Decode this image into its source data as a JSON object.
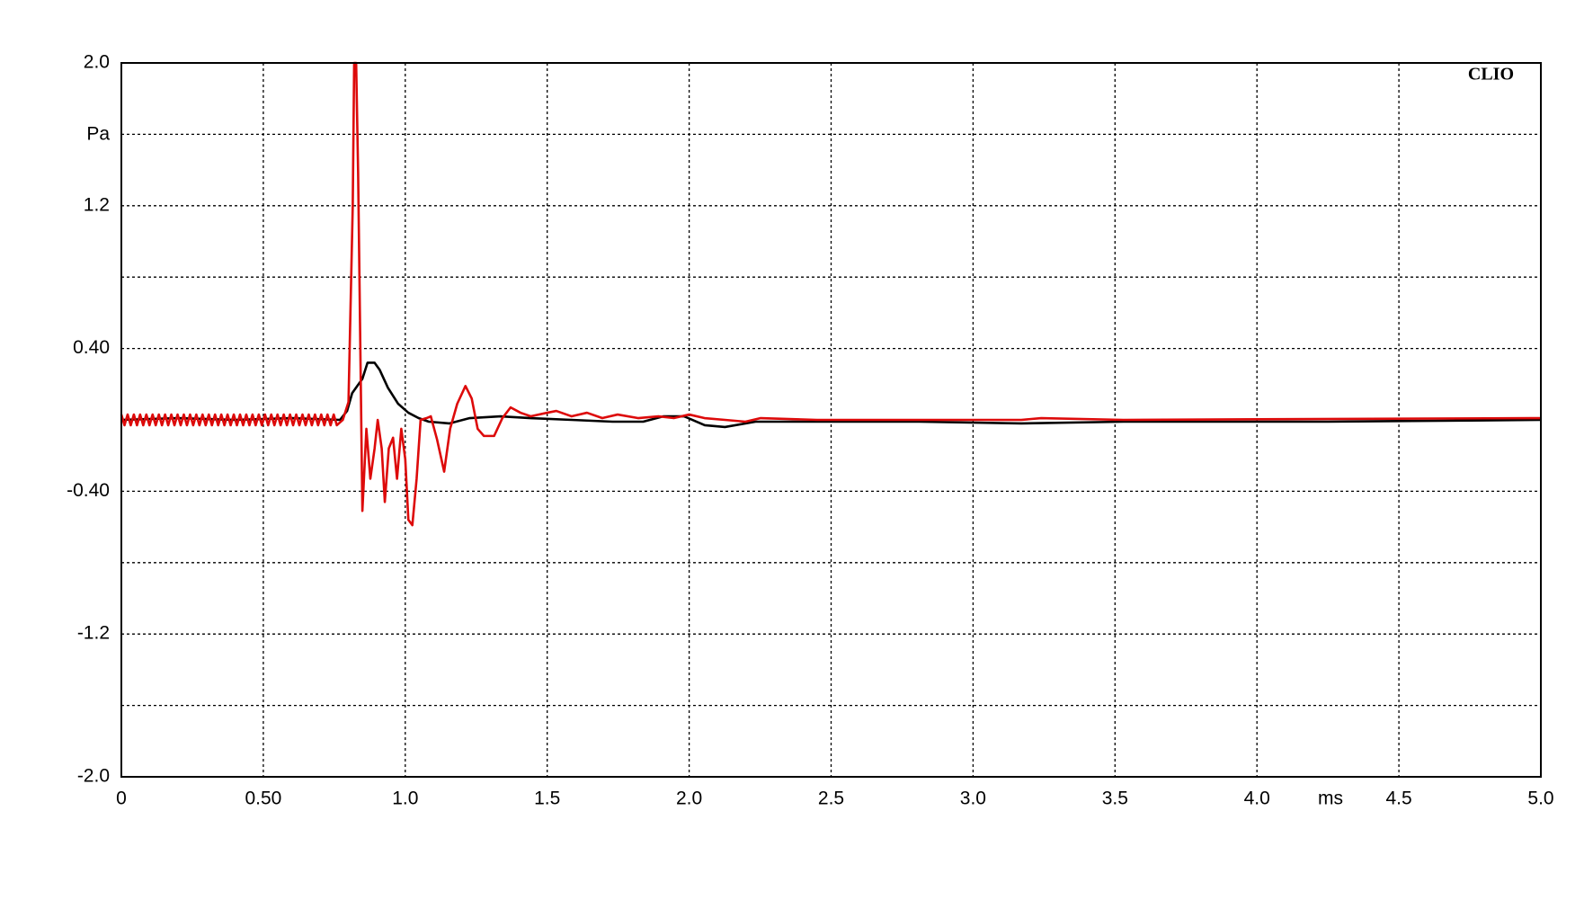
{
  "chart_data": {
    "type": "line",
    "annotation": "CLIO",
    "y_label": "Pa",
    "x_label": "ms",
    "xlim": [
      0,
      5
    ],
    "ylim": [
      -2,
      2
    ],
    "xticks": [
      0,
      {
        "value": 0.5,
        "label": "0.50"
      },
      {
        "value": 1,
        "label": "1.0"
      },
      1.5,
      {
        "value": 2,
        "label": "2.0"
      },
      2.5,
      {
        "value": 3,
        "label": "3.0"
      },
      3.5,
      {
        "value": 4,
        "label": "4.0"
      },
      4.5,
      {
        "value": 5,
        "label": "5.0"
      }
    ],
    "yticks": [
      {
        "value": -2,
        "label": "-2.0"
      },
      -1.2,
      {
        "value": -0.4,
        "label": "-0.40"
      },
      {
        "value": 0.4,
        "label": "0.40"
      },
      1.2,
      {
        "value": 2,
        "label": "2.0"
      }
    ],
    "ygrid_minor": [
      -1.6,
      -0.8,
      0.8,
      1.6
    ],
    "grid": true,
    "series": [
      {
        "color": "#000000",
        "x": [
          0,
          0.2,
          0.4,
          0.6,
          0.77,
          0.795,
          0.813,
          0.831,
          0.849,
          0.867,
          0.892,
          0.91,
          0.939,
          0.975,
          1.011,
          1.047,
          1.083,
          1.155,
          1.227,
          1.335,
          1.442,
          1.586,
          1.73,
          1.838,
          1.91,
          1.982,
          2.055,
          2.126,
          2.234,
          2.45,
          2.81,
          3.17,
          3.53,
          4.25,
          5
        ],
        "values": [
          0,
          0.01,
          0,
          0.01,
          0,
          0.05,
          0.15,
          0.19,
          0.23,
          0.32,
          0.32,
          0.28,
          0.18,
          0.09,
          0.04,
          0.01,
          -0.01,
          -0.02,
          0.01,
          0.02,
          0.01,
          0,
          -0.01,
          -0.01,
          0.02,
          0.02,
          -0.03,
          -0.04,
          -0.01,
          -0.01,
          -0.01,
          -0.02,
          -0.01,
          -0.01,
          0
        ]
      },
      {
        "color": "#dd0a0a",
        "x": [
          0,
          0.011,
          0.022,
          0.033,
          0.044,
          0.055,
          0.066,
          0.077,
          0.088,
          0.099,
          0.11,
          0.121,
          0.132,
          0.143,
          0.154,
          0.165,
          0.176,
          0.187,
          0.198,
          0.209,
          0.22,
          0.231,
          0.242,
          0.253,
          0.264,
          0.275,
          0.286,
          0.297,
          0.308,
          0.319,
          0.33,
          0.341,
          0.352,
          0.363,
          0.374,
          0.385,
          0.396,
          0.407,
          0.418,
          0.429,
          0.44,
          0.451,
          0.462,
          0.473,
          0.484,
          0.495,
          0.506,
          0.517,
          0.528,
          0.539,
          0.55,
          0.561,
          0.572,
          0.583,
          0.594,
          0.605,
          0.616,
          0.627,
          0.638,
          0.649,
          0.66,
          0.671,
          0.682,
          0.693,
          0.704,
          0.715,
          0.726,
          0.737,
          0.748,
          0.759,
          0.78,
          0.8,
          0.815,
          0.82,
          0.827,
          0.834,
          0.849,
          0.863,
          0.877,
          0.892,
          0.903,
          0.917,
          0.928,
          0.942,
          0.957,
          0.971,
          0.986,
          1,
          1.011,
          1.025,
          1.04,
          1.054,
          1.075,
          1.09,
          1.112,
          1.137,
          1.158,
          1.183,
          1.212,
          1.234,
          1.255,
          1.277,
          1.313,
          1.342,
          1.371,
          1.406,
          1.442,
          1.5,
          1.532,
          1.586,
          1.64,
          1.694,
          1.748,
          1.82,
          1.892,
          1.946,
          2,
          2.054,
          2.126,
          2.198,
          2.252,
          2.45,
          3.17,
          3.24,
          3.53,
          4.97,
          5
        ],
        "values": [
          0.03,
          -0.03,
          0.03,
          -0.03,
          0.03,
          -0.03,
          0.03,
          -0.03,
          0.03,
          -0.03,
          0.03,
          -0.03,
          0.03,
          -0.03,
          0.03,
          -0.03,
          0.03,
          -0.03,
          0.03,
          -0.03,
          0.03,
          -0.03,
          0.03,
          -0.03,
          0.03,
          -0.03,
          0.03,
          -0.03,
          0.03,
          -0.03,
          0.03,
          -0.03,
          0.03,
          -0.03,
          0.03,
          -0.03,
          0.03,
          -0.03,
          0.03,
          -0.03,
          0.03,
          -0.03,
          0.03,
          -0.03,
          0.03,
          -0.03,
          0.03,
          -0.03,
          0.03,
          -0.03,
          0.03,
          -0.03,
          0.03,
          -0.03,
          0.03,
          -0.03,
          0.03,
          -0.03,
          0.03,
          -0.03,
          0.03,
          -0.03,
          0.03,
          -0.03,
          0.03,
          -0.03,
          0.03,
          -0.03,
          0.03,
          -0.03,
          0,
          0.1,
          1.2,
          2,
          2,
          1.38,
          -0.51,
          -0.05,
          -0.33,
          -0.16,
          0,
          -0.16,
          -0.46,
          -0.16,
          -0.1,
          -0.33,
          -0.05,
          -0.22,
          -0.56,
          -0.59,
          -0.33,
          0,
          0.01,
          0.02,
          -0.11,
          -0.29,
          -0.05,
          0.09,
          0.19,
          0.12,
          -0.05,
          -0.09,
          -0.09,
          0.01,
          0.07,
          0.04,
          0.02,
          0.04,
          0.05,
          0.02,
          0.04,
          0.01,
          0.03,
          0.01,
          0.02,
          0.01,
          0.03,
          0.01,
          0,
          -0.01,
          0.01,
          0,
          0,
          0.01,
          0,
          0.01,
          0.01
        ]
      }
    ]
  }
}
